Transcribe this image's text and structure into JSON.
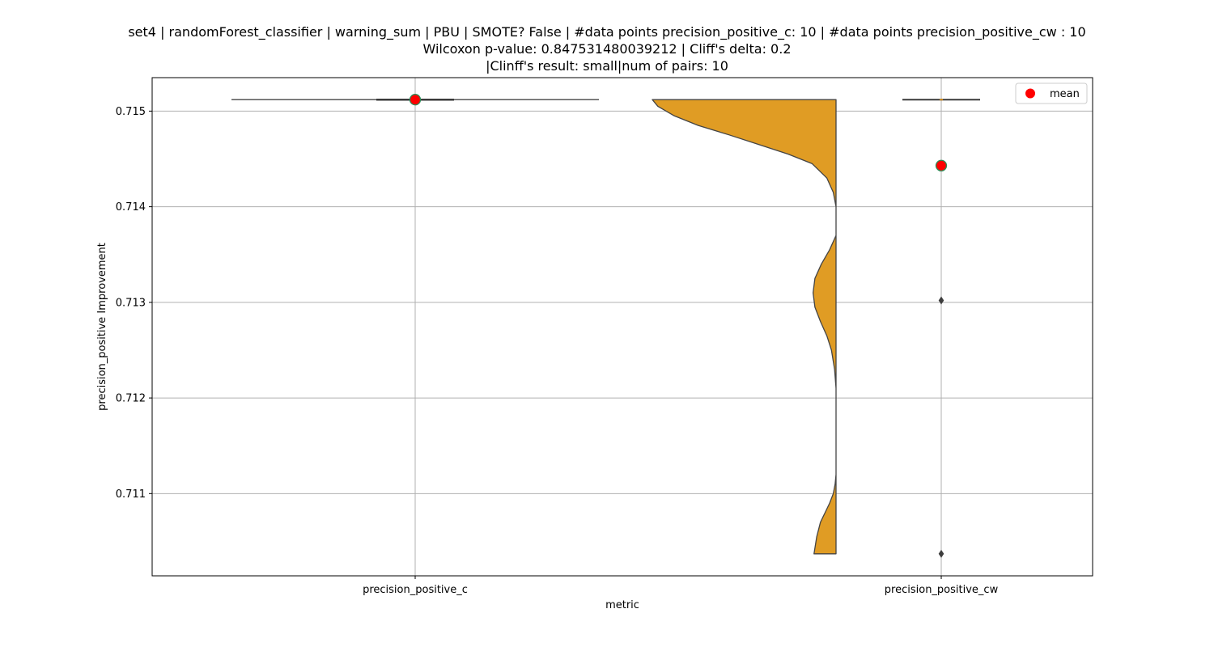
{
  "chart_data": {
    "type": "violin",
    "title_lines": [
      "set4 | randomForest_classifier | warning_sum | PBU | SMOTE? False | #data points precision_positive_c: 10 | #data points precision_positive_cw : 10",
      "Wilcoxon p-value: 0.847531480039212 | Cliff's delta: 0.2",
      "|Clinff's result: small|num of pairs: 10"
    ],
    "xlabel": "metric",
    "ylabel": "precision_positive Improvement",
    "categories": [
      "precision_positive_c",
      "precision_positive_cw"
    ],
    "ylim": [
      0.71014,
      0.71535
    ],
    "yticks": [
      0.711,
      0.712,
      0.713,
      0.714,
      0.715
    ],
    "ytick_labels": [
      "0.711",
      "0.712",
      "0.713",
      "0.714",
      "0.715"
    ],
    "grid": true,
    "legend": {
      "position": "top-right",
      "entries": [
        {
          "label": "mean",
          "color": "#ff0000"
        }
      ]
    },
    "colors": {
      "violin_fill": "#e09c24",
      "violin_edge": "#444444",
      "mean_marker": "#ff0000",
      "mean_edge": "#2e8b57",
      "grid": "#b0b0b0"
    },
    "series": [
      {
        "category": "precision_positive_c",
        "values": [
          0.71512,
          0.71512,
          0.71512,
          0.71512,
          0.71512,
          0.71512,
          0.71512,
          0.71512,
          0.71512,
          0.71512
        ],
        "mean": 0.71512,
        "median": 0.71512
      },
      {
        "category": "precision_positive_cw",
        "values": [
          0.71512,
          0.71512,
          0.71512,
          0.71512,
          0.71512,
          0.71512,
          0.71512,
          0.71512,
          0.71302,
          0.71037
        ],
        "mean": 0.71443,
        "median": 0.71512,
        "outliers": [
          0.71302,
          0.71037
        ],
        "density": [
          [
            0.71512,
            1.0
          ],
          [
            0.71505,
            0.97
          ],
          [
            0.71495,
            0.88
          ],
          [
            0.71485,
            0.75
          ],
          [
            0.71475,
            0.58
          ],
          [
            0.71465,
            0.42
          ],
          [
            0.71455,
            0.26
          ],
          [
            0.71445,
            0.13
          ],
          [
            0.7143,
            0.05
          ],
          [
            0.71415,
            0.015
          ],
          [
            0.714,
            0.0
          ],
          [
            0.71385,
            0.0
          ],
          [
            0.7137,
            0.0
          ],
          [
            0.71355,
            0.035
          ],
          [
            0.7134,
            0.08
          ],
          [
            0.71325,
            0.115
          ],
          [
            0.7131,
            0.125
          ],
          [
            0.71295,
            0.115
          ],
          [
            0.7128,
            0.085
          ],
          [
            0.71265,
            0.05
          ],
          [
            0.7125,
            0.025
          ],
          [
            0.7123,
            0.008
          ],
          [
            0.7121,
            0.0
          ],
          [
            0.7112,
            0.0
          ],
          [
            0.7111,
            0.005
          ],
          [
            0.711,
            0.015
          ],
          [
            0.7109,
            0.035
          ],
          [
            0.7108,
            0.06
          ],
          [
            0.7107,
            0.085
          ],
          [
            0.71055,
            0.105
          ],
          [
            0.71037,
            0.12
          ]
        ]
      }
    ]
  }
}
